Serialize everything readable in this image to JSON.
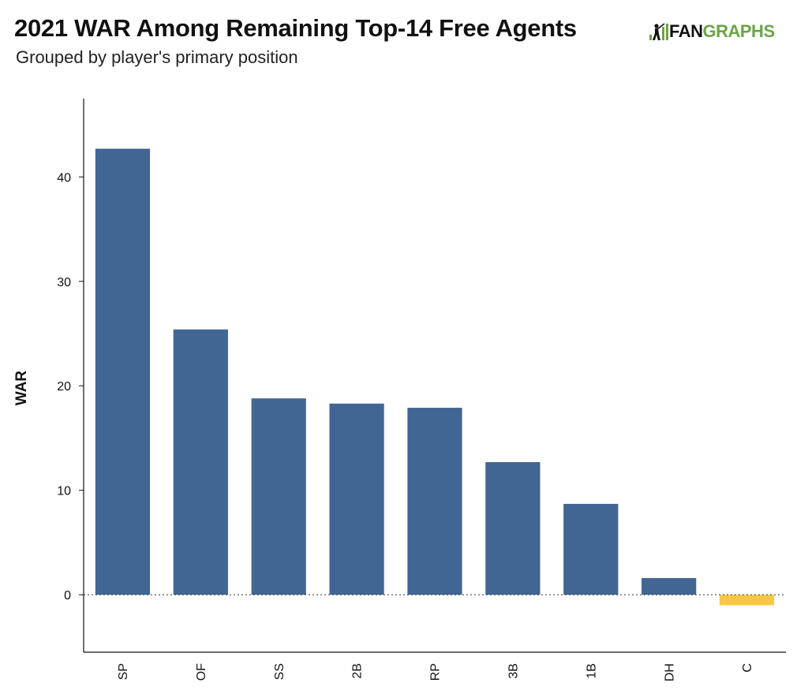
{
  "chart_data": {
    "type": "bar",
    "title": "2021 WAR Among Remaining Top-14 Free Agents",
    "subtitle": "Grouped by player's primary position",
    "ylabel": "WAR",
    "xlabel": "",
    "categories": [
      "SP",
      "OF",
      "SS",
      "2B",
      "RP",
      "3B",
      "1B",
      "DH",
      "C"
    ],
    "values": [
      42.7,
      25.4,
      18.8,
      18.3,
      17.9,
      12.7,
      8.7,
      1.6,
      -1.0
    ],
    "yticks": [
      0,
      10,
      20,
      30,
      40
    ],
    "ylim": [
      -5.5,
      47.5
    ],
    "colors": {
      "positive": "#426693",
      "negative": "#f6c846"
    },
    "zero_line": "dotted"
  },
  "branding": {
    "logo_dark": "FAN",
    "logo_green": "GRAPHS",
    "logo_icon": "batter-icon"
  }
}
